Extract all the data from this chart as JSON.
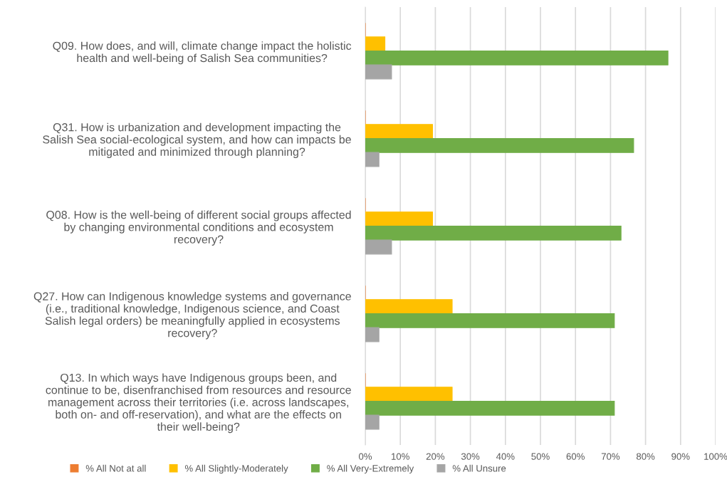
{
  "chart_data": {
    "type": "bar",
    "orientation": "horizontal",
    "categories": [
      "Q09. How does, and will, climate change impact the holistic\nhealth and well-being of Salish Sea communities?",
      "Q31. How is urbanization and development impacting the\nSalish Sea social-ecological system, and how can impacts be\nmitigated and minimized through planning?",
      "Q08. How is the well-being of different social groups affected\nby changing environmental conditions and ecosystem\nrecovery?",
      "Q27. How can Indigenous knowledge systems and governance\n(i.e., traditional knowledge, Indigenous science, and Coast\nSalish legal orders) be meaningfully applied in ecosystems\nrecovery?",
      "Q13. In which ways have Indigenous groups been, and\ncontinue to be, disenfranchised from resources and resource\nmanagement across their territories (i.e. across landscapes,\nboth on- and off-reservation), and what are the effects on\ntheir well-being?"
    ],
    "series": [
      {
        "name": "% All Not at all",
        "color": "#ed7d31",
        "values": [
          0,
          0,
          0,
          0,
          0
        ]
      },
      {
        "name": "% All Slightly-Moderately",
        "color": "#ffc000",
        "values": [
          5.6,
          19.2,
          19.2,
          24.8,
          24.8
        ]
      },
      {
        "name": "% All Very-Extremely",
        "color": "#70ad47",
        "values": [
          86.4,
          76.6,
          73.0,
          71.1,
          71.1
        ]
      },
      {
        "name": "% All Unsure",
        "color": "#a5a5a5",
        "values": [
          7.5,
          3.9,
          7.5,
          3.9,
          3.9
        ]
      }
    ],
    "xlim": [
      0,
      100
    ],
    "xticks": [
      {
        "value": 0,
        "label": "0%"
      },
      {
        "value": 10,
        "label": "10%"
      },
      {
        "value": 20,
        "label": "20%"
      },
      {
        "value": 30,
        "label": "30%"
      },
      {
        "value": 40,
        "label": "40%"
      },
      {
        "value": 50,
        "label": "50%"
      },
      {
        "value": 60,
        "label": "60%"
      },
      {
        "value": 70,
        "label": "70%"
      },
      {
        "value": 80,
        "label": "80%"
      },
      {
        "value": 90,
        "label": "90%"
      },
      {
        "value": 100,
        "label": "100%"
      }
    ],
    "grid": "x",
    "legend": "bottom"
  }
}
